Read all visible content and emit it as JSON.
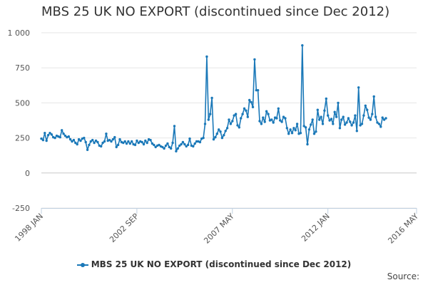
{
  "chart_data": {
    "type": "line",
    "title": "MBS 25 UK NO EXPORT (discontinued since Dec 2012)",
    "source_label": "Source:",
    "series": [
      {
        "name": "MBS 25 UK NO EXPORT (discontinued since Dec 2012)",
        "color": "#1a78b8",
        "start": "1998-01",
        "values": [
          245,
          235,
          285,
          230,
          270,
          285,
          275,
          255,
          250,
          265,
          260,
          255,
          305,
          280,
          265,
          255,
          260,
          240,
          225,
          235,
          215,
          205,
          240,
          230,
          245,
          250,
          220,
          165,
          200,
          225,
          235,
          215,
          230,
          220,
          195,
          190,
          215,
          225,
          280,
          230,
          235,
          225,
          240,
          255,
          185,
          200,
          240,
          220,
          215,
          225,
          210,
          225,
          210,
          225,
          205,
          200,
          230,
          215,
          225,
          220,
          205,
          230,
          215,
          240,
          235,
          210,
          200,
          185,
          195,
          200,
          190,
          185,
          175,
          195,
          210,
          185,
          175,
          215,
          335,
          155,
          175,
          195,
          205,
          220,
          205,
          190,
          200,
          245,
          195,
          190,
          210,
          225,
          225,
          220,
          245,
          250,
          350,
          830,
          380,
          420,
          535,
          240,
          255,
          280,
          310,
          295,
          250,
          270,
          300,
          320,
          380,
          350,
          370,
          410,
          420,
          340,
          325,
          390,
          420,
          460,
          445,
          400,
          520,
          505,
          470,
          810,
          590,
          590,
          370,
          350,
          395,
          365,
          440,
          420,
          375,
          380,
          360,
          395,
          390,
          460,
          375,
          365,
          400,
          390,
          320,
          280,
          310,
          285,
          320,
          305,
          350,
          280,
          285,
          910,
          335,
          325,
          205,
          310,
          345,
          380,
          280,
          295,
          450,
          380,
          400,
          350,
          445,
          530,
          410,
          375,
          385,
          350,
          435,
          400,
          500,
          320,
          380,
          400,
          345,
          360,
          390,
          365,
          340,
          360,
          410,
          300,
          610,
          340,
          350,
          410,
          480,
          450,
          395,
          380,
          420,
          545,
          400,
          360,
          350,
          330,
          395,
          380,
          390
        ]
      }
    ],
    "x_start": "1998-01",
    "x_end": "2016-05",
    "x_ticks": [
      "1998 JAN",
      "2002 SEP",
      "2007 MAY",
      "2012 JAN",
      "2016 MAY"
    ],
    "y_ticks": [
      -250,
      0,
      250,
      500,
      750,
      1000
    ],
    "y_tick_labels": [
      "-250",
      "0",
      "250",
      "500",
      "750",
      "1 000"
    ],
    "ylim": [
      -250,
      1000
    ],
    "xlabel": "",
    "ylabel": "",
    "grid": "horizontal",
    "legend": "bottom-center"
  }
}
